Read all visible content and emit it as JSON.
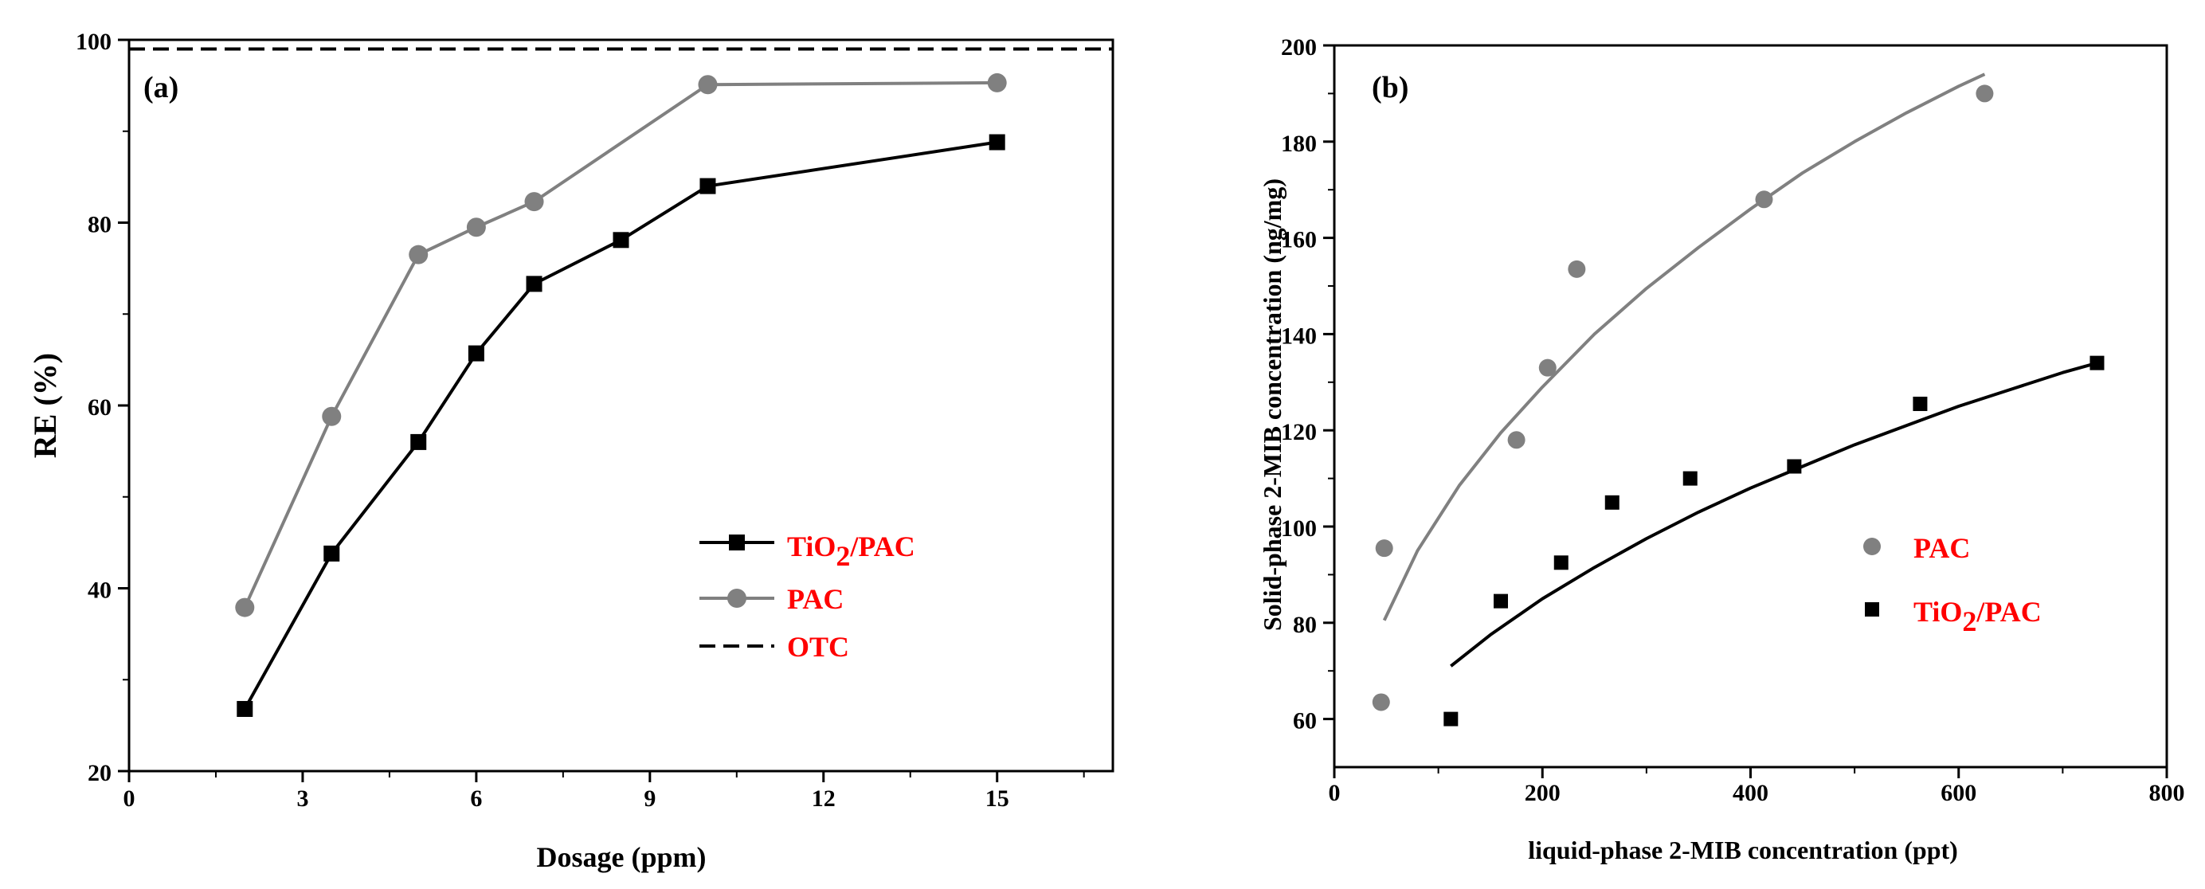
{
  "chart_data": [
    {
      "panel_label": "(a)",
      "type": "line",
      "xlabel": "Dosage (ppm)",
      "ylabel": "RE (%)",
      "xlim": [
        0,
        17
      ],
      "ylim": [
        20,
        100
      ],
      "xticks": [
        0,
        3,
        6,
        9,
        12,
        15
      ],
      "yticks": [
        20,
        40,
        60,
        80,
        100
      ],
      "x_tick_labels": [
        "0",
        "3",
        "6",
        "9",
        "12",
        "15"
      ],
      "y_tick_labels": [
        "20",
        "40",
        "60",
        "80",
        "100"
      ],
      "series": [
        {
          "name": "TiO2/PAC",
          "legend_text": "TiO",
          "legend_sub": "2",
          "legend_suffix": "/PAC",
          "marker": "square",
          "color": "#000000",
          "x": [
            2,
            3.5,
            5,
            6,
            7,
            8.5,
            10,
            15
          ],
          "y": [
            26.8,
            43.8,
            56.0,
            65.7,
            73.3,
            78.1,
            84.0,
            88.8
          ]
        },
        {
          "name": "PAC",
          "legend_text": "PAC",
          "marker": "circle",
          "color": "#808080",
          "x": [
            2,
            3.5,
            5,
            6,
            7,
            10,
            15
          ],
          "y": [
            37.9,
            58.8,
            76.5,
            79.5,
            82.3,
            95.1,
            95.3
          ]
        },
        {
          "name": "OTC",
          "legend_text": "OTC",
          "marker": "none",
          "style": "dashed",
          "color": "#000000",
          "hline": 99.0
        }
      ]
    },
    {
      "panel_label": "(b)",
      "type": "scatter",
      "xlabel": "liquid-phase 2-MIB concentration (ppt)",
      "ylabel": "Solid-phase 2-MIB concentration (ng/mg)",
      "xlim": [
        0,
        800
      ],
      "ylim": [
        50,
        200
      ],
      "xticks": [
        0,
        200,
        400,
        600,
        800
      ],
      "yticks": [
        60,
        80,
        100,
        120,
        140,
        160,
        180,
        200
      ],
      "x_tick_labels": [
        "0",
        "200",
        "400",
        "600",
        "800"
      ],
      "y_tick_labels": [
        "60",
        "80",
        "100",
        "120",
        "140",
        "160",
        "180",
        "200"
      ],
      "series": [
        {
          "name": "PAC",
          "legend_text": "PAC",
          "marker": "circle",
          "color": "#808080",
          "x": [
            45,
            48,
            175,
            205,
            233,
            413,
            625
          ],
          "y": [
            63.5,
            95.5,
            118.0,
            133.0,
            153.5,
            168.0,
            190.0
          ],
          "fit": {
            "x": [
              48,
              80,
              120,
              160,
              200,
              250,
              300,
              350,
              400,
              450,
              500,
              550,
              600,
              625
            ],
            "y": [
              80.5,
              95,
              108.5,
              119.5,
              129,
              140,
              149.5,
              158,
              166,
              173.5,
              180,
              186,
              191.5,
              194
            ]
          }
        },
        {
          "name": "TiO2/PAC",
          "legend_text": "TiO",
          "legend_sub": "2",
          "legend_suffix": "/PAC",
          "marker": "square",
          "color": "#000000",
          "x": [
            112,
            160,
            218,
            267,
            342,
            442,
            563,
            733
          ],
          "y": [
            60.0,
            84.5,
            92.5,
            105.0,
            110.0,
            112.5,
            125.5,
            134.0
          ],
          "fit": {
            "x": [
              112,
              150,
              200,
              250,
              300,
              350,
              400,
              450,
              500,
              550,
              600,
              650,
              700,
              733
            ],
            "y": [
              71,
              77.5,
              85,
              91.5,
              97.5,
              103,
              108,
              112.5,
              117,
              121,
              125,
              128.5,
              132,
              134
            ]
          }
        }
      ]
    }
  ]
}
